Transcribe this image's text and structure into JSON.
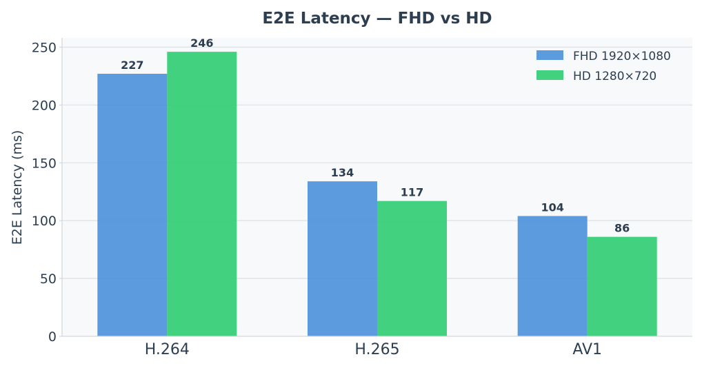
{
  "chart_data": {
    "type": "bar",
    "title": "E2E Latency — FHD vs HD",
    "xlabel": "",
    "ylabel": "E2E Latency (ms)",
    "categories": [
      "H.264",
      "H.265",
      "AV1"
    ],
    "series": [
      {
        "name": "FHD 1920×1080",
        "values": [
          227,
          134,
          104
        ],
        "color": "#4a90d9"
      },
      {
        "name": "HD 1280×720",
        "values": [
          246,
          117,
          86
        ],
        "color": "#2ecc71"
      }
    ],
    "ylim": [
      0,
      258
    ],
    "yticks": [
      0,
      50,
      100,
      150,
      200,
      250
    ],
    "grid": true,
    "legend": "top-right",
    "data_labels": true,
    "colors": {
      "plot_background": "#f7f9fb",
      "grid": "#dde3e8",
      "text": "#2c3e50"
    }
  }
}
